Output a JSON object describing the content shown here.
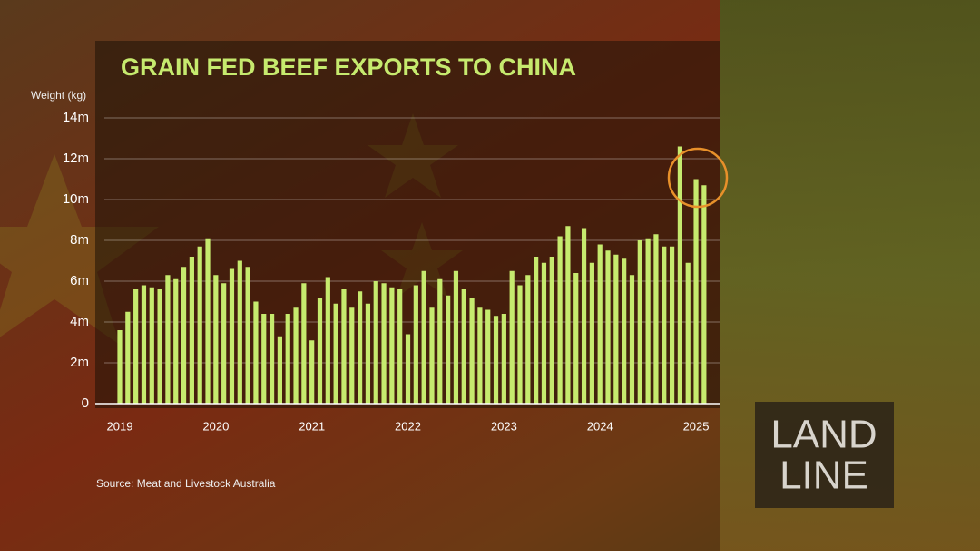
{
  "chart_data": {
    "type": "bar",
    "title": "GRAIN FED BEEF EXPORTS TO CHINA",
    "y_label": "Weight (kg)",
    "source": "Source:  Meat and Livestock Australia",
    "color": "#c6ea6e",
    "grid": true,
    "ylim": [
      0,
      14000000
    ],
    "yticks": [
      0,
      {
        "value": 2000000,
        "label": "2m"
      },
      {
        "value": 4000000,
        "label": "4m"
      },
      {
        "value": 6000000,
        "label": "6m"
      },
      {
        "value": 8000000,
        "label": "8m"
      },
      {
        "value": 10000000,
        "label": "10m"
      },
      {
        "value": 12000000,
        "label": "12m"
      },
      {
        "value": 14000000,
        "label": "14m"
      }
    ],
    "categories": [
      "2019",
      null,
      null,
      null,
      null,
      null,
      null,
      null,
      null,
      null,
      null,
      null,
      "2020",
      null,
      null,
      null,
      null,
      null,
      null,
      null,
      null,
      null,
      null,
      null,
      "2021",
      null,
      null,
      null,
      null,
      null,
      null,
      null,
      null,
      null,
      null,
      null,
      "2022",
      null,
      null,
      null,
      null,
      null,
      null,
      null,
      null,
      null,
      null,
      null,
      "2023",
      null,
      null,
      null,
      null,
      null,
      null,
      null,
      null,
      null,
      null,
      null,
      "2024",
      null,
      null,
      null,
      null,
      null,
      null,
      null,
      null,
      null,
      null,
      null,
      "2025",
      null
    ],
    "values": [
      3600000,
      4500000,
      5600000,
      5800000,
      5700000,
      5600000,
      6300000,
      6100000,
      6700000,
      7200000,
      7700000,
      8100000,
      6300000,
      5900000,
      6600000,
      7000000,
      6700000,
      5000000,
      4400000,
      4400000,
      3300000,
      4400000,
      4700000,
      5900000,
      3100000,
      5200000,
      6200000,
      4900000,
      5600000,
      4700000,
      5500000,
      4900000,
      6000000,
      5900000,
      5700000,
      5600000,
      3400000,
      5800000,
      6500000,
      4700000,
      6100000,
      5300000,
      6500000,
      5600000,
      5200000,
      4700000,
      4600000,
      4300000,
      4400000,
      6500000,
      5800000,
      6300000,
      7200000,
      6900000,
      7200000,
      8200000,
      8700000,
      6400000,
      8600000,
      6900000,
      7800000,
      7500000,
      7300000,
      7100000,
      6300000,
      8000000,
      8100000,
      8300000,
      7700000,
      7700000,
      12600000,
      6900000,
      11000000,
      10700000
    ]
  },
  "logo": {
    "line1": "LAND",
    "line2": "LINE"
  }
}
